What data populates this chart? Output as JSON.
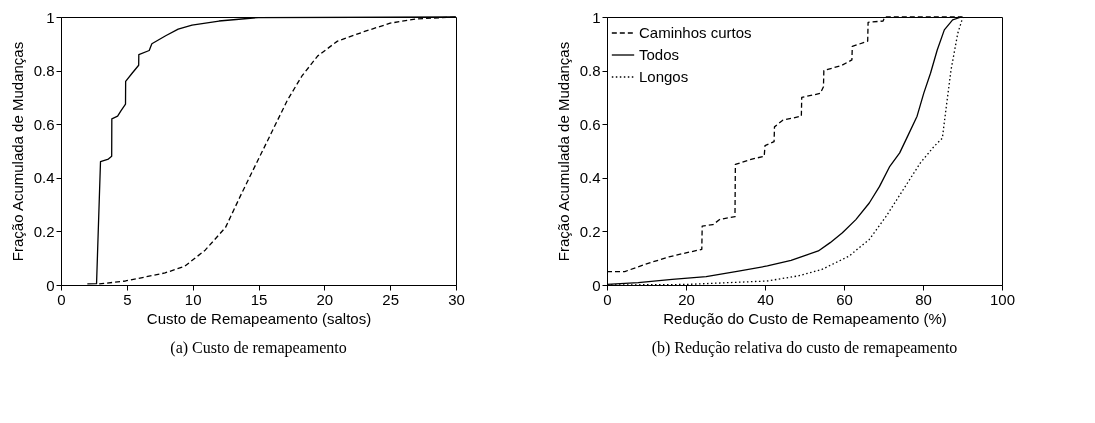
{
  "chart_data": [
    {
      "type": "line",
      "title": "(a)  Custo de remapeamento",
      "xlabel": "Custo de Remapeamento (saltos)",
      "ylabel": "Fração Acumulada de Mudanças",
      "xlim": [
        0,
        30
      ],
      "xticks": [
        0,
        5,
        10,
        15,
        20,
        25,
        30
      ],
      "ylim": [
        0,
        1
      ],
      "yticks": [
        0,
        0.2,
        0.4,
        0.6,
        0.8,
        1
      ],
      "series": [
        {
          "color": "#000000",
          "line_style": "solid",
          "x": [
            2.0,
            2.7,
            3.0,
            3.6,
            3.85,
            3.86,
            4.3,
            4.55,
            4.9,
            4.91,
            5.4,
            5.9,
            5.91,
            6.7,
            6.9,
            7.95,
            8.9,
            9.95,
            12,
            15,
            30
          ],
          "values": [
            0.004,
            0.005,
            0.46,
            0.47,
            0.48,
            0.62,
            0.63,
            0.65,
            0.675,
            0.76,
            0.79,
            0.82,
            0.86,
            0.875,
            0.9,
            0.93,
            0.955,
            0.97,
            0.985,
            0.998,
            1
          ]
        },
        {
          "color": "#000000",
          "line_style": "dashed",
          "x": [
            2.9,
            4.9,
            7.9,
            9.4,
            10.95,
            12.5,
            13.7,
            15,
            16,
            17.2,
            18.3,
            19.5,
            21,
            23,
            25,
            27,
            30
          ],
          "values": [
            0.004,
            0.015,
            0.045,
            0.07,
            0.13,
            0.215,
            0.34,
            0.47,
            0.57,
            0.69,
            0.78,
            0.855,
            0.91,
            0.945,
            0.977,
            0.993,
            1
          ]
        }
      ]
    },
    {
      "type": "line",
      "title": "(b)  Redução relativa do custo de remapeamento",
      "xlabel": "Redução do Custo de Remapeamento (%)",
      "ylabel": "Fração Acumulada de Mudanças",
      "xlim": [
        0,
        100
      ],
      "xticks": [
        0,
        20,
        40,
        60,
        80,
        100
      ],
      "ylim": [
        0,
        1
      ],
      "yticks": [
        0,
        0.2,
        0.4,
        0.6,
        0.8,
        1
      ],
      "legend": "top left",
      "series": [
        {
          "name": "Caminhos curtos",
          "color": "#000000",
          "line_style": "dashed",
          "x": [
            0,
            4.5,
            9.6,
            15.7,
            20,
            24,
            24.1,
            26.8,
            28.6,
            32.4,
            32.5,
            36.7,
            39.8,
            40,
            42.3,
            42.4,
            44.5,
            49.2,
            49.3,
            54,
            54.8,
            54.9,
            59.5,
            62,
            62.1,
            66,
            66.1,
            69.9,
            70.3,
            90
          ],
          "values": [
            0.05,
            0.05,
            0.077,
            0.105,
            0.12,
            0.133,
            0.22,
            0.225,
            0.245,
            0.255,
            0.45,
            0.47,
            0.48,
            0.52,
            0.535,
            0.59,
            0.615,
            0.63,
            0.7,
            0.715,
            0.74,
            0.8,
            0.82,
            0.84,
            0.89,
            0.91,
            0.98,
            0.985,
            1,
            1
          ]
        },
        {
          "name": "Todos",
          "color": "#000000",
          "line_style": "solid",
          "x": [
            0,
            7.9,
            16.5,
            25.1,
            33.3,
            40.6,
            46.6,
            49.7,
            53.5,
            56.5,
            59.6,
            63,
            66.4,
            69,
            71.6,
            74.1,
            76.3,
            78.5,
            80.2,
            81.9,
            83.6,
            85.4,
            87.5,
            89.7
          ],
          "values": [
            0.002,
            0.009,
            0.021,
            0.031,
            0.052,
            0.071,
            0.092,
            0.108,
            0.127,
            0.158,
            0.195,
            0.244,
            0.306,
            0.368,
            0.443,
            0.493,
            0.561,
            0.63,
            0.716,
            0.79,
            0.877,
            0.952,
            0.989,
            1
          ]
        },
        {
          "name": "Longos",
          "color": "#000000",
          "line_style": "dotted",
          "x": [
            0,
            20,
            40.6,
            48.4,
            54.4,
            61.3,
            66.4,
            70.7,
            75,
            79.3,
            82.8,
            84.9,
            85.8,
            87.1,
            88.8,
            90.1
          ],
          "values": [
            0,
            0.002,
            0.015,
            0.034,
            0.058,
            0.108,
            0.17,
            0.257,
            0.356,
            0.455,
            0.517,
            0.548,
            0.654,
            0.803,
            0.939,
            1
          ]
        }
      ]
    }
  ]
}
